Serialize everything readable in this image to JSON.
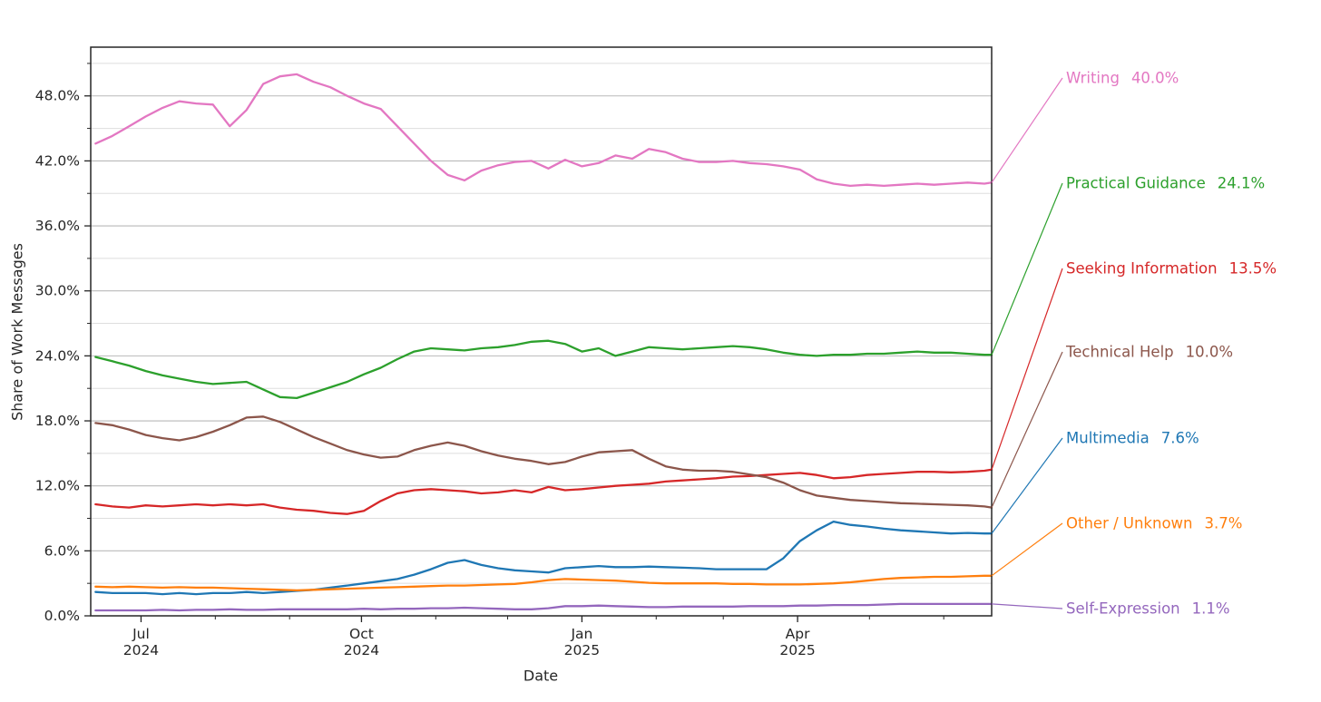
{
  "chart_data": {
    "type": "line",
    "title": "",
    "xlabel": "Date",
    "ylabel": "Share of Work Messages",
    "ylim": [
      0,
      52.5
    ],
    "grid": "horizontal, minor every 3%, major every 6%",
    "legend_position": "right, direct line labels with leader lines",
    "x_range": [
      "2024-06-10",
      "2025-06-21"
    ],
    "y_major_ticks": [
      {
        "value": 0,
        "label": "0.0%"
      },
      {
        "value": 6,
        "label": "6.0%"
      },
      {
        "value": 12,
        "label": "12.0%"
      },
      {
        "value": 18,
        "label": "18.0%"
      },
      {
        "value": 24,
        "label": "24.0%"
      },
      {
        "value": 30,
        "label": "30.0%"
      },
      {
        "value": 36,
        "label": "36.0%"
      },
      {
        "value": 42,
        "label": "42.0%"
      },
      {
        "value": 48,
        "label": "48.0%"
      }
    ],
    "x_major_ticks": [
      {
        "date": "2024-07-01",
        "line1": "Jul",
        "line2": "2024"
      },
      {
        "date": "2024-10-01",
        "line1": "Oct",
        "line2": "2024"
      },
      {
        "date": "2025-01-01",
        "line1": "Jan",
        "line2": "2025"
      },
      {
        "date": "2025-04-01",
        "line1": "Apr",
        "line2": "2025"
      }
    ],
    "x_minor_ticks": [
      "2024-07-01",
      "2024-08-01",
      "2024-09-01",
      "2024-10-01",
      "2024-11-01",
      "2024-12-01",
      "2025-01-01",
      "2025-02-01",
      "2025-03-01",
      "2025-04-01",
      "2025-05-01",
      "2025-06-01"
    ],
    "dates": [
      "2024-06-12",
      "2024-06-19",
      "2024-06-26",
      "2024-07-03",
      "2024-07-10",
      "2024-07-17",
      "2024-07-24",
      "2024-07-31",
      "2024-08-07",
      "2024-08-14",
      "2024-08-21",
      "2024-08-28",
      "2024-09-04",
      "2024-09-11",
      "2024-09-18",
      "2024-09-25",
      "2024-10-02",
      "2024-10-09",
      "2024-10-16",
      "2024-10-23",
      "2024-10-30",
      "2024-11-06",
      "2024-11-13",
      "2024-11-20",
      "2024-11-27",
      "2024-12-04",
      "2024-12-11",
      "2024-12-18",
      "2024-12-25",
      "2025-01-01",
      "2025-01-08",
      "2025-01-15",
      "2025-01-22",
      "2025-01-29",
      "2025-02-05",
      "2025-02-12",
      "2025-02-19",
      "2025-02-26",
      "2025-03-05",
      "2025-03-12",
      "2025-03-19",
      "2025-03-26",
      "2025-04-02",
      "2025-04-09",
      "2025-04-16",
      "2025-04-23",
      "2025-04-30",
      "2025-05-07",
      "2025-05-14",
      "2025-05-21",
      "2025-05-28",
      "2025-06-04",
      "2025-06-11",
      "2025-06-18",
      "2025-06-21"
    ],
    "series": [
      {
        "name": "Writing",
        "end_label": "40.0%",
        "end_value": 40.0,
        "color": "#e377c2",
        "values": [
          43.6,
          44.3,
          45.2,
          46.1,
          46.9,
          47.5,
          47.3,
          47.2,
          45.2,
          46.7,
          49.1,
          49.8,
          50.0,
          49.3,
          48.8,
          48.0,
          47.3,
          46.8,
          45.2,
          43.6,
          42.0,
          40.7,
          40.2,
          41.1,
          41.6,
          41.9,
          42.0,
          41.3,
          42.1,
          41.5,
          41.8,
          42.5,
          42.2,
          43.1,
          42.8,
          42.2,
          41.9,
          41.9,
          42.0,
          41.8,
          41.7,
          41.5,
          41.2,
          40.3,
          39.9,
          39.7,
          39.8,
          39.7,
          39.8,
          39.9,
          39.8,
          39.9,
          40.0,
          39.9,
          40.0
        ]
      },
      {
        "name": "Practical Guidance",
        "end_label": "24.1%",
        "end_value": 24.1,
        "color": "#2ca02c",
        "values": [
          23.9,
          23.5,
          23.1,
          22.6,
          22.2,
          21.9,
          21.6,
          21.4,
          21.5,
          21.6,
          20.9,
          20.2,
          20.1,
          20.6,
          21.1,
          21.6,
          22.3,
          22.9,
          23.7,
          24.4,
          24.7,
          24.6,
          24.5,
          24.7,
          24.8,
          25.0,
          25.3,
          25.4,
          25.1,
          24.4,
          24.7,
          24.0,
          24.4,
          24.8,
          24.7,
          24.6,
          24.7,
          24.8,
          24.9,
          24.8,
          24.6,
          24.3,
          24.1,
          24.0,
          24.1,
          24.1,
          24.2,
          24.2,
          24.3,
          24.4,
          24.3,
          24.3,
          24.2,
          24.1,
          24.1
        ]
      },
      {
        "name": "Seeking Information",
        "end_label": "13.5%",
        "end_value": 13.5,
        "color": "#d62728",
        "values": [
          10.3,
          10.1,
          10.0,
          10.2,
          10.1,
          10.2,
          10.3,
          10.2,
          10.3,
          10.2,
          10.3,
          10.0,
          9.8,
          9.7,
          9.5,
          9.4,
          9.7,
          10.6,
          11.3,
          11.6,
          11.7,
          11.6,
          11.5,
          11.3,
          11.4,
          11.6,
          11.4,
          11.9,
          11.6,
          11.7,
          11.85,
          12.0,
          12.1,
          12.2,
          12.4,
          12.5,
          12.6,
          12.7,
          12.85,
          12.9,
          13.0,
          13.1,
          13.2,
          13.0,
          12.7,
          12.8,
          13.0,
          13.1,
          13.2,
          13.3,
          13.3,
          13.25,
          13.3,
          13.4,
          13.5
        ]
      },
      {
        "name": "Technical Help",
        "end_label": "10.0%",
        "end_value": 10.0,
        "color": "#8c564b",
        "values": [
          17.8,
          17.6,
          17.2,
          16.7,
          16.4,
          16.2,
          16.5,
          17.0,
          17.6,
          18.3,
          18.4,
          17.9,
          17.2,
          16.5,
          15.9,
          15.3,
          14.9,
          14.6,
          14.7,
          15.3,
          15.7,
          16.0,
          15.7,
          15.2,
          14.8,
          14.5,
          14.3,
          14.0,
          14.2,
          14.7,
          15.1,
          15.2,
          15.3,
          14.5,
          13.8,
          13.5,
          13.4,
          13.4,
          13.3,
          13.05,
          12.8,
          12.3,
          11.6,
          11.1,
          10.9,
          10.7,
          10.6,
          10.5,
          10.4,
          10.35,
          10.3,
          10.25,
          10.2,
          10.1,
          10.0
        ]
      },
      {
        "name": "Multimedia",
        "end_label": "7.6%",
        "end_value": 7.6,
        "color": "#1f77b4",
        "values": [
          2.2,
          2.1,
          2.1,
          2.1,
          2.0,
          2.1,
          2.0,
          2.1,
          2.1,
          2.2,
          2.1,
          2.2,
          2.3,
          2.4,
          2.6,
          2.8,
          3.0,
          3.2,
          3.4,
          3.8,
          4.3,
          4.9,
          5.15,
          4.7,
          4.4,
          4.2,
          4.1,
          4.0,
          4.4,
          4.5,
          4.6,
          4.5,
          4.5,
          4.55,
          4.5,
          4.45,
          4.4,
          4.3,
          4.3,
          4.3,
          4.3,
          5.3,
          6.9,
          7.9,
          8.7,
          8.4,
          8.25,
          8.05,
          7.9,
          7.8,
          7.7,
          7.6,
          7.65,
          7.6,
          7.6
        ]
      },
      {
        "name": "Other / Unknown",
        "end_label": "3.7%",
        "end_value": 3.7,
        "color": "#ff7f0e",
        "values": [
          2.7,
          2.65,
          2.7,
          2.65,
          2.6,
          2.65,
          2.6,
          2.6,
          2.55,
          2.5,
          2.45,
          2.4,
          2.35,
          2.4,
          2.45,
          2.5,
          2.55,
          2.6,
          2.65,
          2.7,
          2.75,
          2.8,
          2.8,
          2.85,
          2.9,
          2.95,
          3.1,
          3.3,
          3.4,
          3.35,
          3.3,
          3.25,
          3.15,
          3.05,
          3.0,
          3.0,
          3.0,
          3.0,
          2.95,
          2.95,
          2.9,
          2.9,
          2.9,
          2.95,
          3.0,
          3.1,
          3.25,
          3.4,
          3.5,
          3.55,
          3.6,
          3.6,
          3.65,
          3.7,
          3.7
        ]
      },
      {
        "name": "Self-Expression",
        "end_label": "1.1%",
        "end_value": 1.1,
        "color": "#9467bd",
        "values": [
          0.5,
          0.5,
          0.5,
          0.5,
          0.55,
          0.5,
          0.55,
          0.55,
          0.6,
          0.55,
          0.55,
          0.6,
          0.6,
          0.6,
          0.6,
          0.6,
          0.65,
          0.6,
          0.65,
          0.65,
          0.7,
          0.7,
          0.75,
          0.7,
          0.65,
          0.6,
          0.6,
          0.7,
          0.9,
          0.9,
          0.95,
          0.9,
          0.85,
          0.8,
          0.8,
          0.85,
          0.85,
          0.85,
          0.85,
          0.9,
          0.9,
          0.9,
          0.95,
          0.95,
          1.0,
          1.0,
          1.0,
          1.05,
          1.1,
          1.1,
          1.1,
          1.1,
          1.1,
          1.1,
          1.1
        ]
      }
    ]
  }
}
